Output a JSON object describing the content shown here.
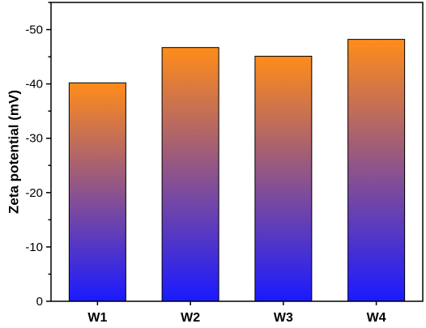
{
  "chart_data": {
    "type": "bar",
    "title": "",
    "xlabel": "",
    "ylabel": "Zeta potential (mV)",
    "categories": [
      "W1",
      "W2",
      "W3",
      "W4"
    ],
    "values": [
      -40.2,
      -46.7,
      -45.1,
      -48.2
    ],
    "ylim": [
      0,
      -55
    ],
    "y_ticks": [
      0,
      -10,
      -20,
      -30,
      -40,
      -50
    ],
    "y_tick_labels": [
      "0",
      "-10",
      "-20",
      "-30",
      "-40",
      "-50"
    ],
    "y_axis_inverted": true,
    "grid": false,
    "legend": "none",
    "bar_gradient": {
      "top_color": "#ff8c1a",
      "bottom_color": "#1a1aff"
    },
    "axis_color": "#000000"
  }
}
